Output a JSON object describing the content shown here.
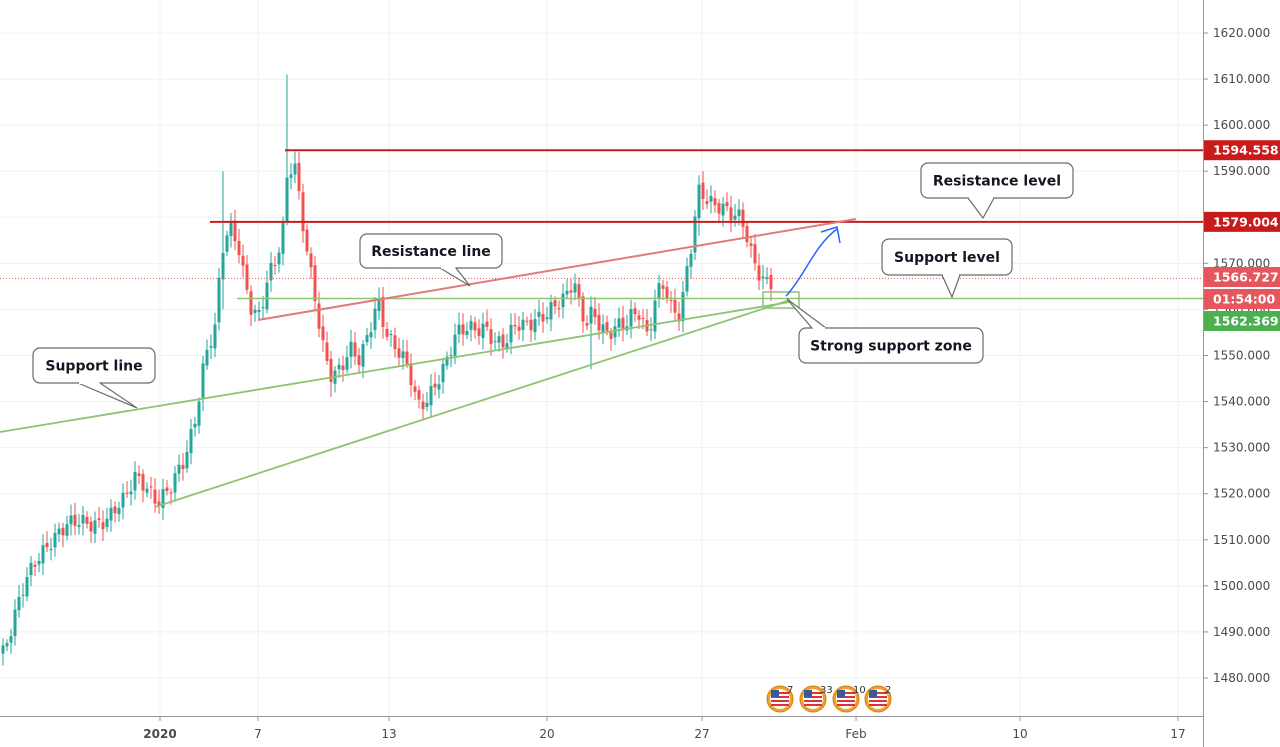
{
  "chart_data": {
    "type": "candlestick",
    "x_tick_labels": [
      "2020",
      "7",
      "13",
      "20",
      "27",
      "Feb",
      "10",
      "17"
    ],
    "y_ticks": [
      "1620.000",
      "1610.000",
      "1600.000",
      "1590.000",
      "1580.000",
      "1570.000",
      "1560.000",
      "1550.000",
      "1540.000",
      "1530.000",
      "1520.000",
      "1510.000",
      "1500.000",
      "1490.000",
      "1480.000"
    ],
    "ylim": [
      1474,
      1627
    ],
    "grid": true,
    "price_labels": [
      {
        "name": "resistance-top",
        "value": 1594.558,
        "text": "1594.558",
        "color": "#c81b1b"
      },
      {
        "name": "resistance-level",
        "value": 1579.004,
        "text": "1579.004",
        "color": "#c81b1b"
      },
      {
        "name": "current-price",
        "value": 1566.727,
        "text": "1566.727",
        "color": "#e5575c"
      },
      {
        "name": "countdown",
        "value": 1562.8,
        "text": "01:54:00",
        "color": "#e5575c"
      },
      {
        "name": "support-level",
        "value": 1562.369,
        "text": "1562.369",
        "color": "#4caf50"
      }
    ],
    "annotations": [
      {
        "name": "resistance-level-callout",
        "text": "Resistance level"
      },
      {
        "name": "resistance-line-callout",
        "text": "Resistance line"
      },
      {
        "name": "support-level-callout",
        "text": "Support level"
      },
      {
        "name": "support-line-callout",
        "text": "Support line"
      },
      {
        "name": "strong-support-zone-callout",
        "text": "Strong support zone"
      }
    ],
    "event_counts": [
      "7",
      "33",
      "10",
      "2"
    ],
    "colors": {
      "up": "#26a69a",
      "down": "#ef5350",
      "resistance": "#c81b1b",
      "resistance_line": "#e07b7b",
      "support": "#8cc474",
      "projection": "#2962ff"
    }
  }
}
